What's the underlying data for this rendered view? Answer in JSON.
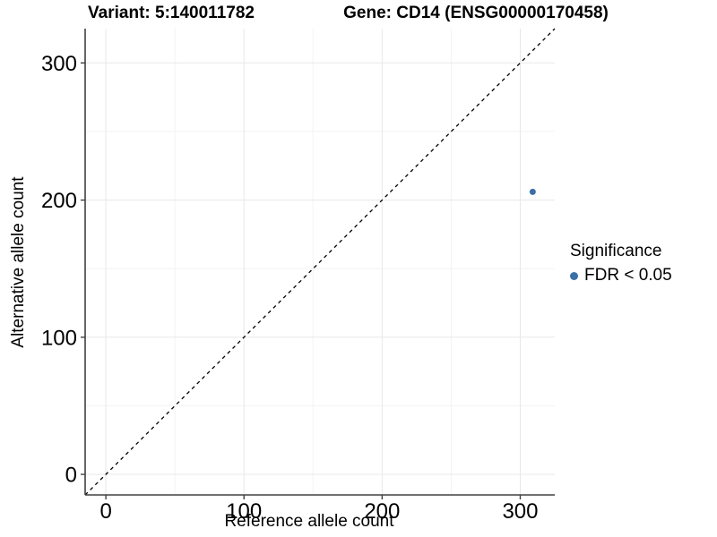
{
  "chart_data": {
    "type": "scatter",
    "title_variant": "Variant: 5:140011782",
    "title_gene": "Gene: CD14 (ENSG00000170458)",
    "xlabel": "Reference allele count",
    "ylabel": "Alternative allele count",
    "xlim": [
      -15,
      325
    ],
    "ylim": [
      -15,
      325
    ],
    "x_ticks": [
      0,
      100,
      200,
      300
    ],
    "y_ticks": [
      0,
      100,
      200,
      300
    ],
    "x_minor_ticks": [
      50,
      150,
      250
    ],
    "y_minor_ticks": [
      50,
      150,
      250
    ],
    "grid": true,
    "legend": {
      "position": "right",
      "title": "Significance",
      "items": [
        {
          "label": "FDR < 0.05",
          "color": "#3a70a6"
        }
      ]
    },
    "reference_line": {
      "kind": "identity",
      "style": "dashed",
      "color": "#000000"
    },
    "series": [
      {
        "name": "FDR < 0.05",
        "color": "#3a70a6",
        "points": [
          {
            "x": 309,
            "y": 206
          }
        ]
      }
    ],
    "colors": {
      "grid_major": "#e8e8e8",
      "grid_minor": "#f3f3f3",
      "axis_line": "#404040",
      "text": "#000000"
    }
  }
}
